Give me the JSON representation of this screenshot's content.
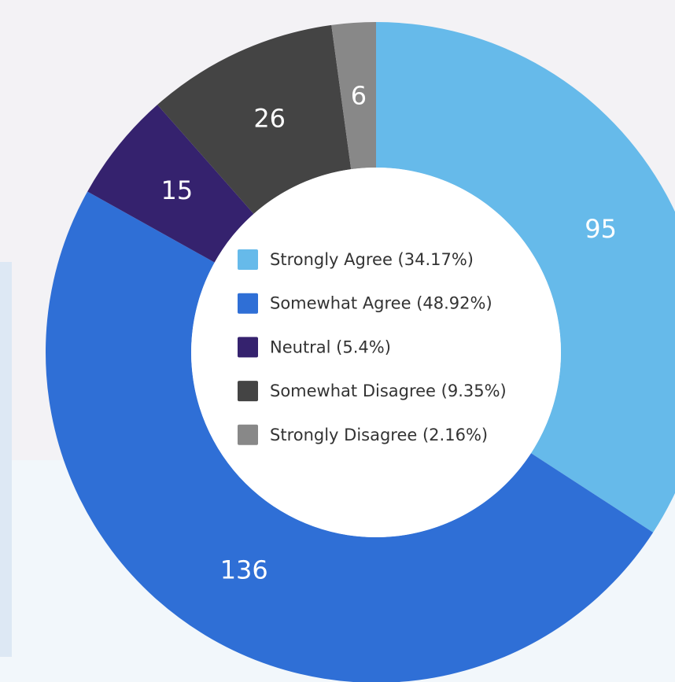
{
  "chart_data": {
    "type": "donut",
    "categories": [
      "Strongly Agree (34.17%)",
      "Somewhat Agree (48.92%)",
      "Neutral (5.4%)",
      "Somewhat Disagree (9.35%)",
      "Strongly Disagree (2.16%)"
    ],
    "values": [
      95,
      136,
      15,
      26,
      6
    ],
    "colors": [
      "#66baea",
      "#2f6fd6",
      "#35226e",
      "#444444",
      "#888888"
    ],
    "legend": "center"
  }
}
